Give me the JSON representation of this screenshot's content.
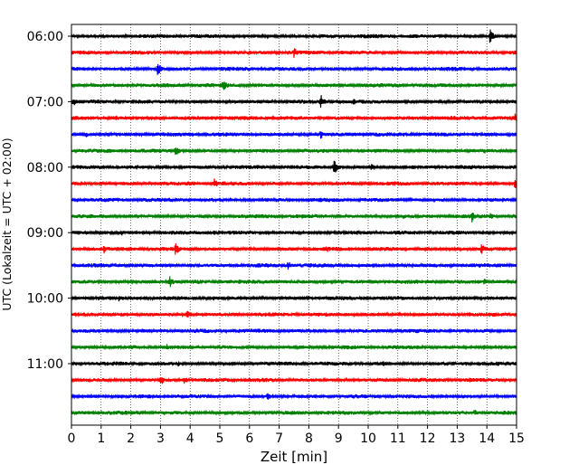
{
  "chart_data": {
    "type": "line",
    "subtype": "helicorder",
    "title": "",
    "xlabel": "Zeit  [min]",
    "ylabel": "UTC (Lokalzeit = UTC + 02:00)",
    "x_unit": "min",
    "xlim": [
      0,
      15
    ],
    "x_ticks": [
      0,
      1,
      2,
      3,
      4,
      5,
      6,
      7,
      8,
      9,
      10,
      11,
      12,
      13,
      14,
      15
    ],
    "x_tick_labels": [
      "0",
      "1",
      "2",
      "3",
      "4",
      "5",
      "6",
      "7",
      "8",
      "9",
      "10",
      "11",
      "12",
      "13",
      "14",
      "15"
    ],
    "y_tick_labels": [
      "06:00",
      "07:00",
      "08:00",
      "09:00",
      "10:00",
      "11:00"
    ],
    "y_tick_trace_index": [
      0,
      4,
      8,
      12,
      16,
      20
    ],
    "trace_interval_min": 15,
    "trace_colors": [
      "#000000",
      "#ff0000",
      "#0000ff",
      "#008000"
    ],
    "grid": {
      "x": true,
      "style": "dotted"
    },
    "legend": "none",
    "traces": [
      {
        "start": "06:00",
        "color": "black",
        "events": [
          {
            "t": 2.3,
            "amp": 0.35
          },
          {
            "t": 3.8,
            "amp": 0.25
          },
          {
            "t": 14.1,
            "amp": 0.95
          }
        ]
      },
      {
        "start": "06:15",
        "color": "red",
        "events": [
          {
            "t": 5.5,
            "amp": 0.3
          },
          {
            "t": 7.5,
            "amp": 0.7
          },
          {
            "t": 14.0,
            "amp": 0.25
          }
        ]
      },
      {
        "start": "06:30",
        "color": "blue",
        "events": [
          {
            "t": 1.0,
            "amp": 0.2
          },
          {
            "t": 2.9,
            "amp": 0.9
          },
          {
            "t": 10.8,
            "amp": 0.35
          }
        ]
      },
      {
        "start": "06:45",
        "color": "green",
        "events": [
          {
            "t": 2.2,
            "amp": 0.3
          },
          {
            "t": 5.1,
            "amp": 0.9
          },
          {
            "t": 9.0,
            "amp": 0.3
          }
        ]
      },
      {
        "start": "07:00",
        "color": "black",
        "events": [
          {
            "t": 0.05,
            "amp": 0.6
          },
          {
            "t": 8.4,
            "amp": 0.9
          },
          {
            "t": 9.5,
            "amp": 0.4
          }
        ]
      },
      {
        "start": "07:15",
        "color": "red",
        "events": [
          {
            "t": 1.5,
            "amp": 0.35
          },
          {
            "t": 4.7,
            "amp": 0.45
          },
          {
            "t": 14.95,
            "amp": 0.7
          }
        ]
      },
      {
        "start": "07:30",
        "color": "blue",
        "events": [
          {
            "t": 0.5,
            "amp": 0.35
          },
          {
            "t": 8.4,
            "amp": 0.6
          },
          {
            "t": 11.2,
            "amp": 0.3
          }
        ]
      },
      {
        "start": "07:45",
        "color": "green",
        "events": [
          {
            "t": 3.5,
            "amp": 0.75
          },
          {
            "t": 13.9,
            "amp": 0.5
          }
        ]
      },
      {
        "start": "08:00",
        "color": "black",
        "events": [
          {
            "t": 2.2,
            "amp": 0.3
          },
          {
            "t": 8.85,
            "amp": 0.95
          },
          {
            "t": 10.1,
            "amp": 0.6
          }
        ]
      },
      {
        "start": "08:15",
        "color": "red",
        "events": [
          {
            "t": 1.0,
            "amp": 0.35
          },
          {
            "t": 4.8,
            "amp": 0.7
          },
          {
            "t": 14.95,
            "amp": 0.8
          }
        ]
      },
      {
        "start": "08:30",
        "color": "blue",
        "events": [
          {
            "t": 0.2,
            "amp": 0.3
          },
          {
            "t": 7.0,
            "amp": 0.3
          },
          {
            "t": 12.5,
            "amp": 0.3
          }
        ]
      },
      {
        "start": "08:45",
        "color": "green",
        "events": [
          {
            "t": 5.0,
            "amp": 0.3
          },
          {
            "t": 11.2,
            "amp": 0.35
          },
          {
            "t": 13.5,
            "amp": 0.8
          },
          {
            "t": 14.1,
            "amp": 0.45
          }
        ]
      },
      {
        "start": "09:00",
        "color": "black",
        "events": [
          {
            "t": 1.7,
            "amp": 0.35
          },
          {
            "t": 4.8,
            "amp": 0.35
          },
          {
            "t": 9.6,
            "amp": 0.35
          }
        ]
      },
      {
        "start": "09:15",
        "color": "red",
        "events": [
          {
            "t": 1.1,
            "amp": 0.55
          },
          {
            "t": 3.5,
            "amp": 0.9
          },
          {
            "t": 8.6,
            "amp": 0.45
          },
          {
            "t": 13.8,
            "amp": 0.75
          }
        ]
      },
      {
        "start": "09:30",
        "color": "blue",
        "events": [
          {
            "t": 1.0,
            "amp": 0.35
          },
          {
            "t": 7.3,
            "amp": 0.6
          },
          {
            "t": 12.3,
            "amp": 0.35
          }
        ]
      },
      {
        "start": "09:45",
        "color": "green",
        "events": [
          {
            "t": 3.3,
            "amp": 0.8
          },
          {
            "t": 4.3,
            "amp": 0.3
          },
          {
            "t": 13.9,
            "amp": 0.45
          }
        ]
      },
      {
        "start": "10:00",
        "color": "black",
        "events": [
          {
            "t": 1.6,
            "amp": 0.4
          },
          {
            "t": 4.8,
            "amp": 0.3
          },
          {
            "t": 11.7,
            "amp": 0.4
          }
        ]
      },
      {
        "start": "10:15",
        "color": "red",
        "events": [
          {
            "t": 1.0,
            "amp": 0.3
          },
          {
            "t": 3.9,
            "amp": 0.55
          },
          {
            "t": 13.4,
            "amp": 0.45
          }
        ]
      },
      {
        "start": "10:30",
        "color": "blue",
        "events": [
          {
            "t": 2.4,
            "amp": 0.3
          },
          {
            "t": 6.4,
            "amp": 0.25
          }
        ]
      },
      {
        "start": "10:45",
        "color": "green",
        "events": [
          {
            "t": 3.2,
            "amp": 0.45
          },
          {
            "t": 7.7,
            "amp": 0.3
          },
          {
            "t": 13.9,
            "amp": 0.35
          }
        ]
      },
      {
        "start": "11:00",
        "color": "black",
        "events": [
          {
            "t": 3.6,
            "amp": 0.35
          },
          {
            "t": 10.5,
            "amp": 0.45
          },
          {
            "t": 13.3,
            "amp": 0.3
          }
        ]
      },
      {
        "start": "11:15",
        "color": "red",
        "events": [
          {
            "t": 3.0,
            "amp": 0.75
          },
          {
            "t": 3.8,
            "amp": 0.5
          },
          {
            "t": 13.4,
            "amp": 0.4
          }
        ]
      },
      {
        "start": "11:30",
        "color": "blue",
        "events": [
          {
            "t": 6.6,
            "amp": 0.5
          },
          {
            "t": 13.2,
            "amp": 0.3
          }
        ]
      },
      {
        "start": "11:45",
        "color": "green",
        "events": [
          {
            "t": 3.1,
            "amp": 0.4
          },
          {
            "t": 13.6,
            "amp": 0.5
          }
        ]
      }
    ]
  }
}
